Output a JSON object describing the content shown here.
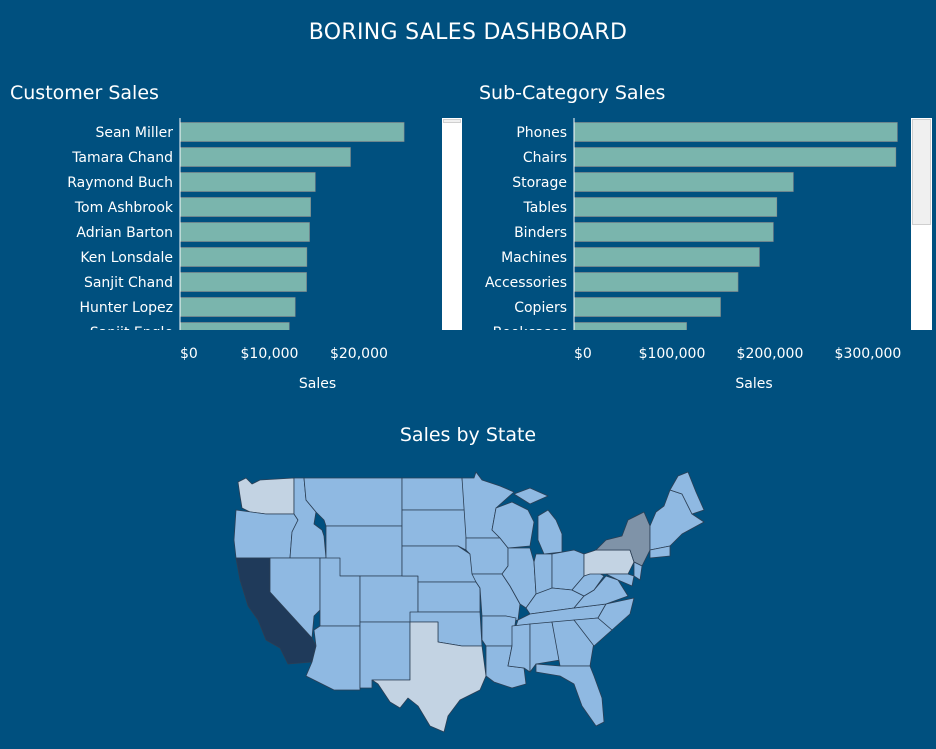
{
  "dashboard": {
    "title": "BORING SALES DASHBOARD"
  },
  "colors": {
    "background": "#00507f",
    "bar": "#7ab5ad",
    "bar_edge": "#8a8a8a",
    "california": "#1f3a5a",
    "new_york": "#7f93a8",
    "texas_washington": "#c3d3e3",
    "default_state": "#8fb9e2"
  },
  "customer_panel": {
    "title": "Customer Sales"
  },
  "subcategory_panel": {
    "title": "Sub-Category Sales"
  },
  "map_panel": {
    "title": "Sales by State"
  },
  "chart_data": [
    {
      "type": "bar",
      "orientation": "horizontal",
      "title": "Customer Sales",
      "xlabel": "Sales",
      "ylabel": "",
      "categories": [
        "Sean Miller",
        "Tamara Chand",
        "Raymond Buch",
        "Tom Ashbrook",
        "Adrian Barton",
        "Ken Lonsdale",
        "Sanjit Chand",
        "Hunter Lopez",
        "Sanjit Engle"
      ],
      "values": [
        25043,
        19052,
        15117,
        14596,
        14474,
        14175,
        14142,
        12873,
        12209
      ],
      "xlim": [
        0,
        28500
      ],
      "xticks": [
        "$0",
        "$10,000",
        "$20,000"
      ],
      "xtick_values": [
        0,
        10000,
        20000
      ],
      "grid": false
    },
    {
      "type": "bar",
      "orientation": "horizontal",
      "title": "Sub-Category Sales",
      "xlabel": "Sales",
      "ylabel": "",
      "categories": [
        "Phones",
        "Chairs",
        "Storage",
        "Tables",
        "Binders",
        "Machines",
        "Accessories",
        "Copiers",
        "Bookcases"
      ],
      "values": [
        330007,
        328449,
        223844,
        206966,
        203413,
        189239,
        167380,
        149528,
        114880
      ],
      "xlim": [
        0,
        347000
      ],
      "xticks": [
        "$0",
        "$100,000",
        "$200,000",
        "$300,000"
      ],
      "xtick_values": [
        0,
        100000,
        200000,
        300000
      ],
      "grid": false
    }
  ]
}
